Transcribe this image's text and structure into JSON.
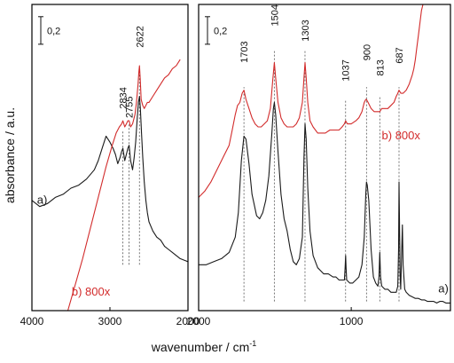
{
  "chart_data": {
    "type": "line",
    "xlabel": "wavenumber / cm",
    "xlabel_sup": "-1",
    "ylabel": "absorbance / a.u.",
    "x_reversed": true,
    "grid": false,
    "colors": {
      "a": "#1a1a1a",
      "b": "#d22b2b",
      "frame": "#000000",
      "guide": "#555555"
    },
    "panels": [
      {
        "id": "left",
        "xlim": [
          4000,
          2000
        ],
        "ylim": [
          0,
          1
        ],
        "xticks": [
          {
            "value": 4000,
            "label": "4000"
          },
          {
            "value": 3000,
            "label": "3000"
          },
          {
            "value": 2000,
            "label": "2000"
          }
        ],
        "scale_bar": {
          "label": "0,2",
          "value": 0.09,
          "top": 0.96
        },
        "peaks": [
          {
            "value": 2834,
            "label": "2834",
            "y_from": 0.15,
            "y_to": 0.59,
            "label_y": 0.73
          },
          {
            "value": 2755,
            "label": "2755",
            "y_from": 0.15,
            "y_to": 0.61,
            "label_y": 0.7
          },
          {
            "value": 2622,
            "label": "2622",
            "y_from": 0.15,
            "y_to": 0.79,
            "label_y": 0.93
          }
        ],
        "series": [
          {
            "key": "a",
            "name": "a)",
            "label_at": [
              3935,
              0.35
            ],
            "x": [
              4000,
              3900,
              3800,
              3700,
              3600,
              3500,
              3400,
              3300,
              3200,
              3150,
              3100,
              3050,
              3000,
              2960,
              2930,
              2900,
              2870,
              2850,
              2834,
              2810,
              2790,
              2770,
              2755,
              2735,
              2710,
              2690,
              2670,
              2650,
              2635,
              2622,
              2610,
              2595,
              2580,
              2560,
              2540,
              2520,
              2500,
              2450,
              2400,
              2350,
              2300,
              2250,
              2200,
              2150,
              2100,
              2050,
              2000
            ],
            "y": [
              0.36,
              0.34,
              0.35,
              0.37,
              0.38,
              0.4,
              0.41,
              0.43,
              0.46,
              0.49,
              0.53,
              0.57,
              0.55,
              0.53,
              0.51,
              0.48,
              0.5,
              0.52,
              0.53,
              0.49,
              0.51,
              0.53,
              0.54,
              0.49,
              0.46,
              0.5,
              0.55,
              0.63,
              0.68,
              0.7,
              0.66,
              0.58,
              0.5,
              0.42,
              0.36,
              0.32,
              0.29,
              0.26,
              0.24,
              0.23,
              0.21,
              0.2,
              0.19,
              0.18,
              0.17,
              0.165,
              0.16
            ]
          },
          {
            "key": "b",
            "name": "b) 800x",
            "label_at": [
              3490,
              0.05
            ],
            "x": [
              3540,
              3450,
              3350,
              3250,
              3150,
              3050,
              2970,
              2920,
              2880,
              2850,
              2834,
              2810,
              2790,
              2770,
              2755,
              2735,
              2710,
              2680,
              2660,
              2640,
              2630,
              2622,
              2612,
              2600,
              2580,
              2560,
              2540,
              2520,
              2500,
              2450,
              2400,
              2350,
              2300,
              2250,
              2200,
              2150,
              2100
            ],
            "y": [
              0.0,
              0.08,
              0.17,
              0.27,
              0.37,
              0.47,
              0.54,
              0.58,
              0.6,
              0.61,
              0.62,
              0.6,
              0.61,
              0.62,
              0.62,
              0.6,
              0.61,
              0.64,
              0.68,
              0.74,
              0.78,
              0.8,
              0.76,
              0.69,
              0.67,
              0.66,
              0.67,
              0.68,
              0.68,
              0.7,
              0.72,
              0.74,
              0.76,
              0.77,
              0.79,
              0.8,
              0.82
            ]
          }
        ]
      },
      {
        "id": "right",
        "xlim": [
          2000,
          350
        ],
        "ylim": [
          0,
          1
        ],
        "xticks": [
          {
            "value": 2000,
            "label": "2000"
          },
          {
            "value": 1000,
            "label": "1000"
          }
        ],
        "scale_bar": {
          "label": "0,2",
          "value": 0.09,
          "top": 0.96
        },
        "peaks": [
          {
            "value": 1703,
            "label": "1703",
            "y_from": 0.03,
            "y_to": 0.73,
            "label_y": 0.88
          },
          {
            "value": 1504,
            "label": "1504",
            "y_from": 0.03,
            "y_to": 0.85,
            "label_y": 1.0
          },
          {
            "value": 1303,
            "label": "1303",
            "y_from": 0.03,
            "y_to": 0.85,
            "label_y": 0.95
          },
          {
            "value": 1037,
            "label": "1037",
            "y_from": 0.03,
            "y_to": 0.69,
            "label_y": 0.82
          },
          {
            "value": 900,
            "label": "900",
            "y_from": 0.03,
            "y_to": 0.73,
            "label_y": 0.87
          },
          {
            "value": 813,
            "label": "813",
            "y_from": 0.03,
            "y_to": 0.7,
            "label_y": 0.82
          },
          {
            "value": 687,
            "label": "687",
            "y_from": 0.03,
            "y_to": 0.73,
            "label_y": 0.86
          }
        ],
        "series": [
          {
            "key": "a",
            "name": "a)",
            "label_at": [
              430,
              0.06
            ],
            "x": [
              2000,
              1950,
              1900,
              1850,
              1800,
              1760,
              1740,
              1720,
              1703,
              1690,
              1670,
              1650,
              1620,
              1600,
              1580,
              1560,
              1540,
              1520,
              1510,
              1504,
              1495,
              1480,
              1460,
              1440,
              1420,
              1400,
              1380,
              1360,
              1340,
              1320,
              1310,
              1303,
              1295,
              1285,
              1270,
              1250,
              1220,
              1200,
              1180,
              1150,
              1120,
              1100,
              1080,
              1060,
              1045,
              1040,
              1037,
              1034,
              1030,
              1010,
              990,
              970,
              950,
              930,
              915,
              905,
              900,
              895,
              885,
              870,
              855,
              840,
              825,
              818,
              813,
              808,
              800,
              780,
              760,
              740,
              720,
              705,
              695,
              690,
              687,
              684,
              680,
              676,
              672,
              665,
              660,
              650,
              640,
              620,
              600,
              580,
              560,
              540,
              520,
              500,
              480,
              460,
              440,
              420,
              400,
              380,
              360,
              350
            ],
            "y": [
              0.15,
              0.15,
              0.16,
              0.17,
              0.19,
              0.24,
              0.32,
              0.49,
              0.57,
              0.56,
              0.48,
              0.38,
              0.31,
              0.3,
              0.32,
              0.36,
              0.44,
              0.58,
              0.66,
              0.68,
              0.64,
              0.52,
              0.38,
              0.3,
              0.26,
              0.2,
              0.16,
              0.15,
              0.17,
              0.24,
              0.5,
              0.61,
              0.56,
              0.4,
              0.26,
              0.18,
              0.14,
              0.13,
              0.12,
              0.12,
              0.11,
              0.11,
              0.1,
              0.1,
              0.1,
              0.14,
              0.18,
              0.14,
              0.1,
              0.09,
              0.09,
              0.1,
              0.11,
              0.15,
              0.24,
              0.38,
              0.42,
              0.41,
              0.36,
              0.2,
              0.11,
              0.09,
              0.08,
              0.11,
              0.19,
              0.11,
              0.08,
              0.07,
              0.07,
              0.06,
              0.06,
              0.06,
              0.08,
              0.2,
              0.42,
              0.3,
              0.12,
              0.07,
              0.15,
              0.28,
              0.15,
              0.07,
              0.06,
              0.05,
              0.045,
              0.04,
              0.04,
              0.035,
              0.035,
              0.03,
              0.03,
              0.03,
              0.025,
              0.03,
              0.03,
              0.025,
              0.025,
              0.025
            ]
          },
          {
            "key": "b",
            "name": "b) 800x",
            "label_at": [
              800,
              0.56
            ],
            "x": [
              2000,
              1960,
              1920,
              1880,
              1840,
              1800,
              1780,
              1760,
              1745,
              1730,
              1715,
              1703,
              1690,
              1670,
              1650,
              1630,
              1610,
              1590,
              1570,
              1550,
              1530,
              1515,
              1504,
              1495,
              1480,
              1460,
              1440,
              1420,
              1400,
              1380,
              1360,
              1340,
              1320,
              1310,
              1303,
              1295,
              1285,
              1270,
              1250,
              1220,
              1200,
              1170,
              1140,
              1110,
              1080,
              1060,
              1045,
              1037,
              1025,
              1000,
              970,
              950,
              930,
              915,
              905,
              900,
              890,
              870,
              850,
              830,
              813,
              800,
              780,
              760,
              740,
              720,
              705,
              695,
              687,
              675,
              660,
              640,
              620,
              600,
              590,
              580,
              570,
              560,
              550,
              540,
              530
            ],
            "y": [
              0.37,
              0.39,
              0.42,
              0.46,
              0.5,
              0.54,
              0.59,
              0.64,
              0.67,
              0.68,
              0.71,
              0.72,
              0.69,
              0.66,
              0.63,
              0.61,
              0.6,
              0.6,
              0.61,
              0.62,
              0.66,
              0.75,
              0.81,
              0.76,
              0.68,
              0.63,
              0.61,
              0.6,
              0.6,
              0.6,
              0.61,
              0.63,
              0.68,
              0.76,
              0.81,
              0.76,
              0.68,
              0.62,
              0.6,
              0.58,
              0.58,
              0.58,
              0.59,
              0.59,
              0.59,
              0.6,
              0.61,
              0.62,
              0.61,
              0.61,
              0.62,
              0.63,
              0.65,
              0.68,
              0.69,
              0.69,
              0.68,
              0.66,
              0.65,
              0.65,
              0.65,
              0.66,
              0.66,
              0.66,
              0.67,
              0.68,
              0.7,
              0.71,
              0.72,
              0.71,
              0.71,
              0.72,
              0.74,
              0.77,
              0.79,
              0.82,
              0.86,
              0.9,
              0.94,
              0.98,
              1.0
            ]
          }
        ]
      }
    ]
  }
}
